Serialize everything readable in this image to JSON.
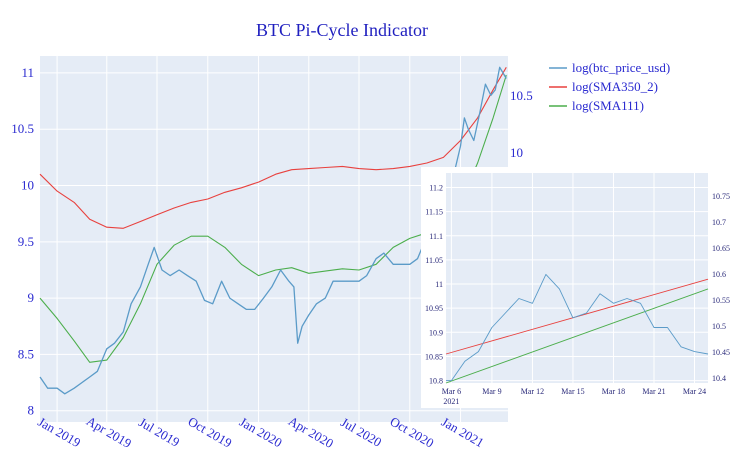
{
  "chart_data": [
    {
      "type": "line",
      "title": "BTC Pi-Cycle Indicator",
      "xlabel": "",
      "ylabel": "",
      "x_ticks": [
        "Jan 2019",
        "Apr 2019",
        "Jul 2019",
        "Oct 2019",
        "Jan 2020",
        "Apr 2020",
        "Jul 2020",
        "Oct 2020",
        "Jan 2021"
      ],
      "y_ticks": [
        "8",
        "8.5",
        "9",
        "9.5",
        "10",
        "10.5",
        "11"
      ],
      "y2_ticks": [
        "10",
        "10.5"
      ],
      "ylim": [
        7.9,
        11.15
      ],
      "grid": true,
      "legend": "top-right",
      "colors": {
        "price": "#5b9bc8",
        "sma350": "#e8413e",
        "sma111": "#4cae4c",
        "plot_bg": "#e5ecf6",
        "text": "#2a2ad0"
      },
      "series": [
        {
          "name": "log(btc_price_usd)",
          "x": [
            "2018-12-01",
            "2018-12-15",
            "2019-01-01",
            "2019-01-15",
            "2019-02-01",
            "2019-02-15",
            "2019-03-01",
            "2019-03-15",
            "2019-04-01",
            "2019-04-15",
            "2019-05-01",
            "2019-05-15",
            "2019-06-01",
            "2019-06-15",
            "2019-06-26",
            "2019-07-10",
            "2019-07-25",
            "2019-08-10",
            "2019-08-25",
            "2019-09-10",
            "2019-09-25",
            "2019-10-10",
            "2019-10-26",
            "2019-11-10",
            "2019-11-25",
            "2019-12-10",
            "2019-12-25",
            "2020-01-10",
            "2020-01-25",
            "2020-02-10",
            "2020-02-25",
            "2020-03-05",
            "2020-03-12",
            "2020-03-20",
            "2020-04-01",
            "2020-04-15",
            "2020-05-01",
            "2020-05-15",
            "2020-06-01",
            "2020-06-15",
            "2020-07-01",
            "2020-07-15",
            "2020-08-01",
            "2020-08-15",
            "2020-09-01",
            "2020-09-15",
            "2020-10-01",
            "2020-10-15",
            "2020-11-01",
            "2020-11-15",
            "2020-12-01",
            "2020-12-15",
            "2021-01-01",
            "2021-01-08",
            "2021-01-15",
            "2021-01-25",
            "2021-02-05",
            "2021-02-15",
            "2021-02-25",
            "2021-03-05",
            "2021-03-13",
            "2021-03-25"
          ],
          "values": [
            8.3,
            8.2,
            8.2,
            8.15,
            8.2,
            8.25,
            8.3,
            8.35,
            8.55,
            8.6,
            8.7,
            8.95,
            9.1,
            9.3,
            9.45,
            9.25,
            9.2,
            9.25,
            9.2,
            9.15,
            8.98,
            8.95,
            9.15,
            9.0,
            8.95,
            8.9,
            8.9,
            9.0,
            9.1,
            9.25,
            9.15,
            9.1,
            8.6,
            8.75,
            8.85,
            8.95,
            9.0,
            9.15,
            9.15,
            9.15,
            9.15,
            9.2,
            9.35,
            9.4,
            9.3,
            9.3,
            9.3,
            9.35,
            9.55,
            9.75,
            9.85,
            10.0,
            10.35,
            10.6,
            10.5,
            10.4,
            10.65,
            10.9,
            10.8,
            10.85,
            11.05,
            10.95
          ]
        },
        {
          "name": "log(SMA350_2)",
          "x": [
            "2018-12-01",
            "2019-01-01",
            "2019-02-01",
            "2019-03-01",
            "2019-04-01",
            "2019-05-01",
            "2019-06-01",
            "2019-07-01",
            "2019-08-01",
            "2019-09-01",
            "2019-10-01",
            "2019-11-01",
            "2019-12-01",
            "2020-01-01",
            "2020-02-01",
            "2020-03-01",
            "2020-04-01",
            "2020-05-01",
            "2020-06-01",
            "2020-07-01",
            "2020-08-01",
            "2020-09-01",
            "2020-10-01",
            "2020-11-01",
            "2020-12-01",
            "2021-01-01",
            "2021-02-01",
            "2021-03-01",
            "2021-03-25"
          ],
          "values": [
            10.1,
            9.95,
            9.85,
            9.7,
            9.63,
            9.62,
            9.68,
            9.74,
            9.8,
            9.85,
            9.88,
            9.94,
            9.98,
            10.03,
            10.1,
            10.14,
            10.15,
            10.16,
            10.17,
            10.15,
            10.14,
            10.15,
            10.17,
            10.2,
            10.25,
            10.4,
            10.6,
            10.85,
            11.05
          ]
        },
        {
          "name": "log(SMA111)",
          "x": [
            "2018-12-01",
            "2019-01-01",
            "2019-02-01",
            "2019-03-01",
            "2019-04-01",
            "2019-05-01",
            "2019-06-01",
            "2019-07-01",
            "2019-08-01",
            "2019-09-01",
            "2019-10-01",
            "2019-11-01",
            "2019-12-01",
            "2020-01-01",
            "2020-02-01",
            "2020-03-01",
            "2020-04-01",
            "2020-05-01",
            "2020-06-01",
            "2020-07-01",
            "2020-08-01",
            "2020-09-01",
            "2020-10-01",
            "2020-11-01",
            "2020-12-01",
            "2021-01-01",
            "2021-02-01",
            "2021-03-01",
            "2021-03-25"
          ],
          "values": [
            9.0,
            8.82,
            8.62,
            8.43,
            8.45,
            8.65,
            8.95,
            9.3,
            9.47,
            9.55,
            9.55,
            9.45,
            9.3,
            9.2,
            9.25,
            9.27,
            9.22,
            9.24,
            9.26,
            9.25,
            9.3,
            9.45,
            9.53,
            9.58,
            9.65,
            9.85,
            10.2,
            10.6,
            10.98
          ]
        }
      ]
    },
    {
      "type": "line",
      "title": "",
      "x_ticks": [
        "Mar 6",
        "Mar 9",
        "Mar 12",
        "Mar 15",
        "Mar 18",
        "Mar 21",
        "Mar 24"
      ],
      "x_tick_sub": "2021",
      "y_ticks": [
        "10.8",
        "10.85",
        "10.9",
        "10.95",
        "11",
        "11.05",
        "11.1",
        "11.15",
        "11.2"
      ],
      "y2_ticks": [
        "10.4",
        "10.45",
        "10.5",
        "10.55",
        "10.6",
        "10.65",
        "10.7",
        "10.75"
      ],
      "xlim": [
        5.6,
        25
      ],
      "ylim": [
        10.795,
        11.23
      ],
      "grid": true,
      "series": [
        {
          "name": "log(btc_price_usd)",
          "x": [
            5.6,
            6,
            7,
            8,
            9,
            10,
            11,
            12,
            13,
            14,
            15,
            16,
            17,
            18,
            19,
            20,
            21,
            22,
            23,
            24,
            25
          ],
          "values": [
            10.8,
            10.8,
            10.84,
            10.86,
            10.91,
            10.94,
            10.97,
            10.96,
            11.02,
            10.99,
            10.93,
            10.94,
            10.98,
            10.96,
            10.97,
            10.96,
            10.91,
            10.91,
            10.87,
            10.86,
            10.855
          ]
        },
        {
          "name": "log(SMA350_2)",
          "x": [
            5.6,
            25
          ],
          "values": [
            10.855,
            11.01
          ]
        },
        {
          "name": "log(SMA111)",
          "x": [
            5.6,
            25
          ],
          "values": [
            10.795,
            10.99
          ]
        }
      ]
    }
  ]
}
